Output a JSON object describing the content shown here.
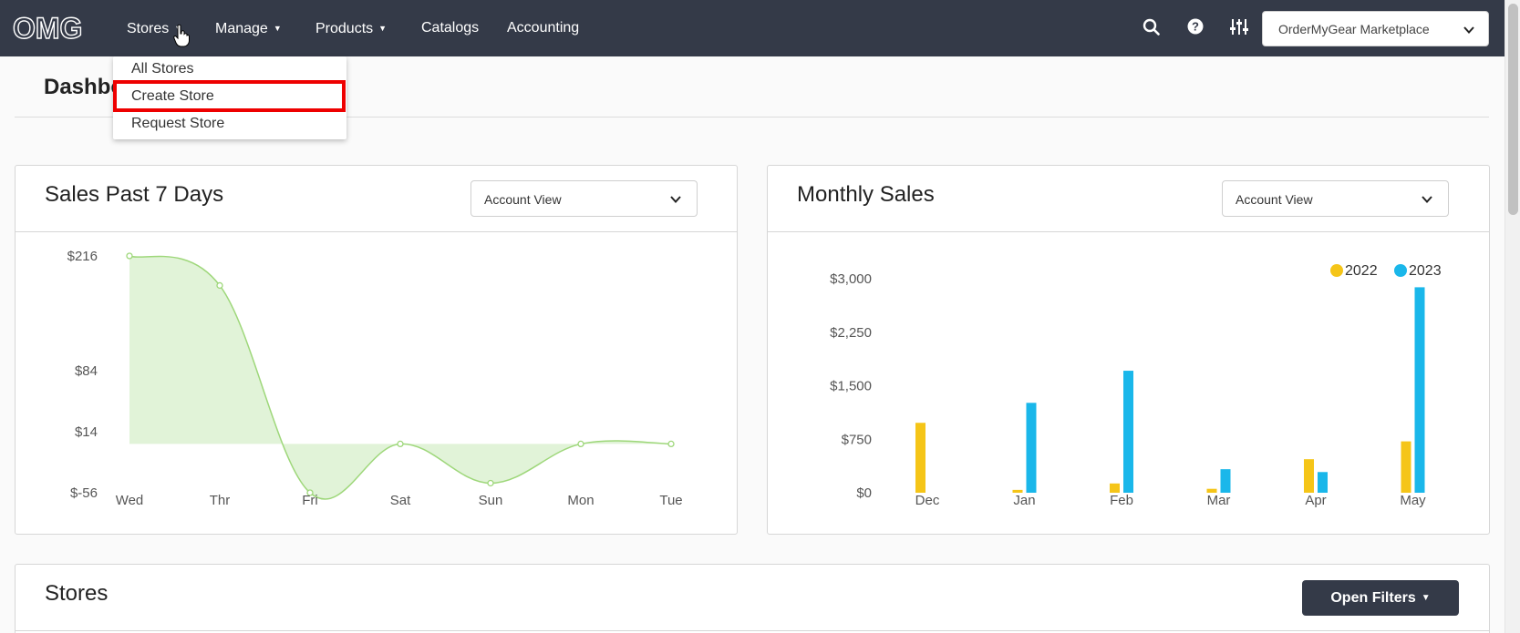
{
  "nav": {
    "logo_text": "OMG",
    "items": [
      {
        "label": "Stores",
        "has_caret": true
      },
      {
        "label": "Manage",
        "has_caret": true
      },
      {
        "label": "Products",
        "has_caret": true
      },
      {
        "label": "Catalogs",
        "has_caret": false
      },
      {
        "label": "Accounting",
        "has_caret": false
      }
    ],
    "icons": [
      "search-icon",
      "help-icon",
      "sliders-icon"
    ],
    "org_select": {
      "value": "OrderMyGear Marketplace"
    }
  },
  "stores_menu": {
    "items": [
      "All Stores",
      "Create Store",
      "Request Store"
    ],
    "highlighted": "Create Store"
  },
  "page": {
    "title": "Dashboard"
  },
  "sales_card": {
    "title": "Sales Past 7 Days",
    "view_select": "Account View"
  },
  "monthly_card": {
    "title": "Monthly Sales",
    "view_select": "Account View"
  },
  "stores_card": {
    "title": "Stores",
    "filters_button": "Open Filters"
  },
  "chart_data": [
    {
      "type": "area",
      "x": [
        "Wed",
        "Thr",
        "Fri",
        "Sat",
        "Sun",
        "Mon",
        "Tue"
      ],
      "values": [
        216,
        182,
        -56,
        0,
        -45,
        0,
        0
      ],
      "y_ticks": [
        216,
        84,
        14,
        -56
      ],
      "y_tick_labels": [
        "$216",
        "$84",
        "$14",
        "$-56"
      ],
      "color": "#9ed77a",
      "fill": "#e1f3d8"
    },
    {
      "type": "bar",
      "categories": [
        "Dec",
        "Jan",
        "Feb",
        "Mar",
        "Apr",
        "May"
      ],
      "series": [
        {
          "name": "2022",
          "color": "#f5c518",
          "values": [
            980,
            40,
            130,
            55,
            470,
            720
          ]
        },
        {
          "name": "2023",
          "color": "#1ab7ea",
          "values": [
            0,
            1260,
            1710,
            330,
            290,
            2880
          ]
        }
      ],
      "y_ticks": [
        0,
        750,
        1500,
        2250,
        3000
      ],
      "y_tick_labels": [
        "$0",
        "$750",
        "$1,500",
        "$2,250",
        "$3,000"
      ],
      "ylim": [
        0,
        3000
      ],
      "legend": "top-right"
    }
  ]
}
